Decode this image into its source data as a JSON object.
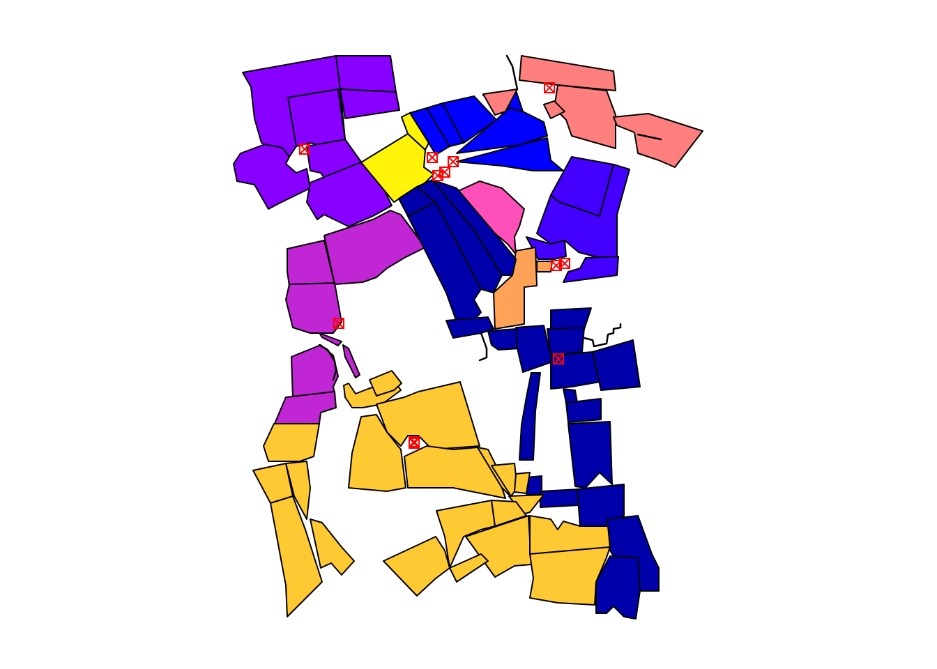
{
  "map": {
    "colors": {
      "violet": "#8800ff",
      "indigo": "#4400ff",
      "blue": "#0000ff",
      "navy": "#0000aa",
      "magenta": "#c026d3",
      "yellow": "#fff30a",
      "gold": "#ffc933",
      "salmon": "#ff7f7f",
      "pink": "#ff4fb8",
      "orange": "#ffa257",
      "outline": "#000000",
      "marker": "#ff0000"
    },
    "marker_icon": "boxed-x-marker-icon",
    "marker_count": 12
  }
}
